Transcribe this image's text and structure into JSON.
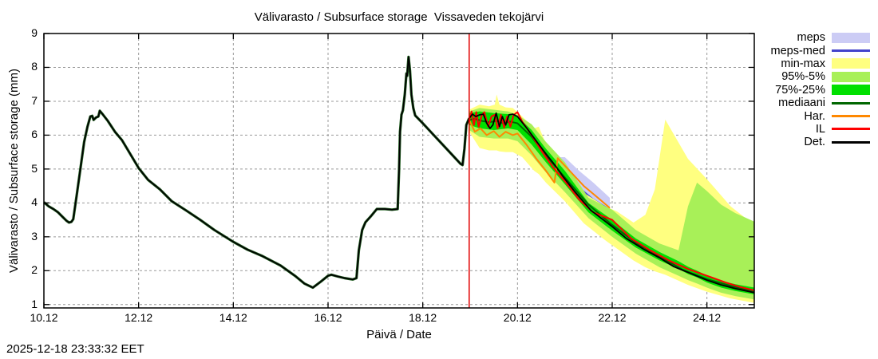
{
  "timestamp": "2025-12-18 23:33:32 EET",
  "legend": {
    "items": [
      {
        "label": "meps",
        "type": "band",
        "color": "#ccccf5"
      },
      {
        "label": "meps-med",
        "type": "line",
        "color": "#4444cc"
      },
      {
        "label": "min-max",
        "type": "band",
        "color": "#ffff80"
      },
      {
        "label": "95%-5%",
        "type": "band",
        "color": "#a8f058"
      },
      {
        "label": "75%-25%",
        "type": "band",
        "color": "#00e000"
      },
      {
        "label": "mediaani",
        "type": "line",
        "color": "#006600"
      },
      {
        "label": "Har.",
        "type": "line",
        "color": "#ff8800"
      },
      {
        "label": "IL",
        "type": "line",
        "color": "#ff0000"
      },
      {
        "label": "Det.",
        "type": "line",
        "color": "#000000"
      }
    ]
  },
  "chart_data": {
    "type": "line",
    "title": "Välivarasto / Subsurface storage  Vissaveden tekojärvi",
    "xlabel": "Päivä / Date",
    "ylabel": "Välivarasto / Subsurface storage (mm)",
    "x_range": [
      10,
      25
    ],
    "y_range": [
      0.9,
      9
    ],
    "x_ticks": [
      {
        "pos": 10,
        "label": "10.12"
      },
      {
        "pos": 12,
        "label": "12.12"
      },
      {
        "pos": 14,
        "label": "14.12"
      },
      {
        "pos": 16,
        "label": "16.12"
      },
      {
        "pos": 18,
        "label": "18.12"
      },
      {
        "pos": 20,
        "label": "20.12"
      },
      {
        "pos": 22,
        "label": "22.12"
      },
      {
        "pos": 24,
        "label": "24.12"
      }
    ],
    "y_ticks": [
      {
        "pos": 1,
        "label": "1"
      },
      {
        "pos": 2,
        "label": "2"
      },
      {
        "pos": 3,
        "label": "3"
      },
      {
        "pos": 4,
        "label": "4"
      },
      {
        "pos": 5,
        "label": "5"
      },
      {
        "pos": 6,
        "label": "6"
      },
      {
        "pos": 7,
        "label": "7"
      },
      {
        "pos": 8,
        "label": "8"
      },
      {
        "pos": 9,
        "label": "9"
      }
    ],
    "x_gridlines": [
      12,
      14,
      16,
      18,
      20,
      22,
      24
    ],
    "y_gridlines": [
      1,
      2,
      3,
      4,
      5,
      6,
      7,
      8
    ],
    "grid_color": "#999999",
    "forecast_start_x": 18.98,
    "now_line_color": "#e00000",
    "layers": [
      {
        "kind": "band",
        "name": "meps",
        "color": "#ccccf5",
        "x": [
          18.98,
          19.2,
          19.5,
          19.8,
          20.0,
          20.3,
          20.6,
          20.85,
          21.0,
          21.3,
          21.6,
          21.95
        ],
        "upper": [
          6.6,
          6.65,
          6.6,
          6.55,
          6.4,
          5.95,
          5.55,
          5.35,
          5.35,
          4.95,
          4.6,
          4.15
        ],
        "lower": [
          6.2,
          5.68,
          5.64,
          5.68,
          5.6,
          5.15,
          4.75,
          4.55,
          4.45,
          4.2,
          3.95,
          3.7
        ]
      },
      {
        "kind": "line",
        "name": "meps-med",
        "color": "#4444cc",
        "width": 2,
        "x": [
          18.98,
          19.2,
          19.5,
          19.8,
          20.0,
          20.3,
          20.6,
          20.85,
          21.0,
          21.3,
          21.6,
          21.95
        ],
        "y": [
          6.4,
          6.2,
          6.1,
          6.1,
          6.0,
          5.5,
          5.1,
          4.9,
          4.85,
          4.45,
          4.1,
          3.8
        ]
      },
      {
        "kind": "band",
        "name": "min-max",
        "color": "#ffff80",
        "x": [
          18.98,
          19.2,
          19.4,
          19.52,
          19.56,
          19.62,
          19.75,
          19.9,
          20.1,
          20.35,
          20.45,
          20.6,
          21.0,
          21.4,
          21.85,
          22.1,
          22.45,
          22.7,
          22.9,
          23.12,
          23.6,
          24.0,
          24.5,
          25.0
        ],
        "upper": [
          6.75,
          6.9,
          6.85,
          6.9,
          7.2,
          6.9,
          6.82,
          6.8,
          6.55,
          6.2,
          6.25,
          5.75,
          5.1,
          4.3,
          3.9,
          3.75,
          3.42,
          3.65,
          4.4,
          6.46,
          5.3,
          4.7,
          3.9,
          3.35
        ],
        "lower": [
          6.1,
          5.62,
          5.55,
          5.55,
          5.55,
          5.52,
          5.5,
          5.5,
          5.35,
          4.95,
          4.85,
          4.6,
          4.05,
          3.4,
          2.9,
          2.65,
          2.3,
          2.1,
          1.98,
          1.88,
          1.58,
          1.38,
          1.18,
          1.05
        ]
      },
      {
        "kind": "band",
        "name": "95%-5%",
        "color": "#a8f058",
        "x": [
          18.98,
          19.2,
          19.5,
          19.8,
          20.0,
          20.3,
          20.6,
          21.0,
          21.5,
          22.0,
          22.5,
          23.0,
          23.4,
          23.6,
          23.79,
          24.0,
          24.3,
          24.6,
          25.0
        ],
        "upper": [
          6.7,
          6.8,
          6.75,
          6.7,
          6.6,
          6.32,
          5.8,
          5.2,
          4.15,
          3.8,
          3.2,
          2.8,
          2.6,
          3.9,
          4.6,
          4.35,
          3.95,
          3.7,
          3.45
        ],
        "lower": [
          6.15,
          5.95,
          5.9,
          5.9,
          5.82,
          5.4,
          4.9,
          4.32,
          3.55,
          3.0,
          2.5,
          2.1,
          1.85,
          1.72,
          1.62,
          1.5,
          1.35,
          1.25,
          1.15
        ]
      },
      {
        "kind": "band",
        "name": "75%-25%",
        "color": "#00e000",
        "x": [
          18.98,
          19.2,
          19.5,
          19.8,
          20.0,
          20.3,
          20.6,
          21.0,
          21.5,
          22.0,
          22.5,
          23.0,
          23.4,
          23.6,
          23.79,
          24.0,
          24.3,
          24.6,
          25.0
        ],
        "upper": [
          6.65,
          6.7,
          6.65,
          6.62,
          6.55,
          6.15,
          5.6,
          4.95,
          4.0,
          3.5,
          2.95,
          2.55,
          2.28,
          2.12,
          2.0,
          1.86,
          1.7,
          1.6,
          1.5
        ],
        "lower": [
          6.3,
          6.2,
          6.15,
          6.2,
          6.15,
          5.72,
          5.2,
          4.55,
          3.72,
          3.18,
          2.68,
          2.3,
          2.05,
          1.9,
          1.8,
          1.65,
          1.5,
          1.4,
          1.3
        ]
      },
      {
        "kind": "line",
        "name": "mediaani",
        "color": "#006600",
        "width": 2,
        "x": [
          18.98,
          19.1,
          19.25,
          19.4,
          19.55,
          19.7,
          19.85,
          20.0,
          20.3,
          20.6,
          21.0,
          21.5,
          22.0,
          22.5,
          23.0,
          23.5,
          24.0,
          24.5,
          25.0
        ],
        "y": [
          6.45,
          6.48,
          6.42,
          6.38,
          6.42,
          6.35,
          6.4,
          6.35,
          5.95,
          5.4,
          4.75,
          3.95,
          3.35,
          2.82,
          2.42,
          2.02,
          1.75,
          1.55,
          1.38
        ]
      },
      {
        "kind": "line",
        "name": "history-observed",
        "color": "#000000",
        "width": 1.7,
        "under_color": "#1e5c1e",
        "under_width": 3.2,
        "x": [
          10.0,
          10.1,
          10.2,
          10.3,
          10.4,
          10.48,
          10.53,
          10.58,
          10.62,
          10.7,
          10.78,
          10.85,
          10.92,
          10.98,
          11.02,
          11.05,
          11.1,
          11.15,
          11.18,
          11.25,
          11.35,
          11.5,
          11.65,
          11.8,
          12.0,
          12.2,
          12.45,
          12.7,
          13.0,
          13.3,
          13.6,
          14.0,
          14.3,
          14.6,
          15.0,
          15.3,
          15.5,
          15.68,
          15.85,
          16.0,
          16.07,
          16.2,
          16.35,
          16.52,
          16.6,
          16.65,
          16.72,
          16.79,
          16.9,
          17.03,
          17.2,
          17.35,
          17.47,
          17.5,
          17.52,
          17.55,
          17.58,
          17.62,
          17.655,
          17.67,
          17.7,
          17.73,
          17.76,
          17.8,
          17.84,
          18.0,
          18.2,
          18.4,
          18.6,
          18.8,
          18.84,
          18.88,
          18.92,
          18.98
        ],
        "y": [
          4.02,
          3.9,
          3.82,
          3.72,
          3.58,
          3.47,
          3.42,
          3.44,
          3.52,
          4.3,
          5.1,
          5.8,
          6.25,
          6.55,
          6.57,
          6.45,
          6.52,
          6.55,
          6.72,
          6.6,
          6.42,
          6.1,
          5.85,
          5.5,
          5.03,
          4.68,
          4.4,
          4.05,
          3.78,
          3.5,
          3.2,
          2.85,
          2.62,
          2.44,
          2.15,
          1.85,
          1.62,
          1.5,
          1.68,
          1.85,
          1.88,
          1.83,
          1.78,
          1.74,
          1.78,
          2.6,
          3.2,
          3.43,
          3.6,
          3.82,
          3.82,
          3.8,
          3.82,
          5.0,
          6.1,
          6.6,
          6.73,
          7.2,
          7.82,
          7.75,
          8.31,
          7.9,
          7.2,
          6.8,
          6.58,
          6.35,
          6.05,
          5.75,
          5.45,
          5.15,
          5.12,
          5.6,
          6.3,
          6.5
        ]
      },
      {
        "kind": "line",
        "name": "Har.",
        "color": "#ff8800",
        "width": 2,
        "x": [
          18.98,
          19.1,
          19.22,
          19.35,
          19.5,
          19.62,
          19.75,
          19.9,
          20.0,
          20.2,
          20.4,
          20.6,
          20.78,
          20.85,
          21.1,
          21.4,
          21.7,
          21.95
        ],
        "y": [
          6.45,
          6.1,
          6.2,
          6.0,
          6.12,
          5.95,
          6.1,
          6.0,
          6.05,
          5.7,
          5.3,
          4.95,
          4.6,
          5.32,
          4.95,
          4.5,
          4.15,
          3.85
        ]
      },
      {
        "kind": "line",
        "name": "IL",
        "color": "#ff0000",
        "width": 2,
        "x": [
          18.98,
          19.03,
          19.08,
          19.13,
          19.18,
          19.25,
          19.3,
          19.38,
          19.45,
          19.52,
          19.58,
          19.65,
          19.72,
          19.78,
          19.85,
          19.92,
          20.0,
          20.1,
          20.3,
          20.5,
          20.75,
          21.0,
          21.3,
          21.6,
          22.0,
          22.4,
          22.8,
          23.2,
          23.6,
          24.0,
          24.4,
          24.7,
          25.0
        ],
        "y": [
          6.4,
          6.7,
          6.3,
          6.68,
          6.25,
          6.6,
          6.68,
          6.25,
          6.55,
          6.6,
          6.2,
          6.6,
          6.22,
          6.55,
          6.25,
          6.6,
          6.68,
          6.4,
          6.0,
          5.55,
          5.05,
          4.64,
          4.1,
          3.72,
          3.5,
          2.95,
          2.6,
          2.3,
          2.05,
          1.85,
          1.65,
          1.52,
          1.42
        ]
      },
      {
        "kind": "line",
        "name": "Det.",
        "color": "#000000",
        "width": 1.8,
        "x": [
          18.98,
          19.05,
          19.12,
          19.2,
          19.28,
          19.35,
          19.42,
          19.48,
          19.55,
          19.62,
          19.68,
          19.75,
          19.82,
          19.9,
          20.0,
          20.2,
          20.4,
          20.6,
          20.8,
          20.96,
          21.2,
          21.55,
          22.0,
          22.3,
          22.68,
          23.0,
          23.3,
          23.6,
          24.0,
          24.3,
          24.6,
          25.0
        ],
        "y": [
          6.5,
          6.62,
          6.55,
          6.6,
          6.62,
          6.35,
          6.2,
          6.3,
          6.65,
          6.25,
          6.55,
          6.3,
          6.6,
          6.62,
          6.55,
          6.2,
          5.82,
          5.45,
          5.1,
          4.78,
          4.35,
          3.78,
          3.3,
          2.95,
          2.62,
          2.38,
          2.12,
          1.95,
          1.72,
          1.58,
          1.47,
          1.35
        ]
      }
    ]
  }
}
